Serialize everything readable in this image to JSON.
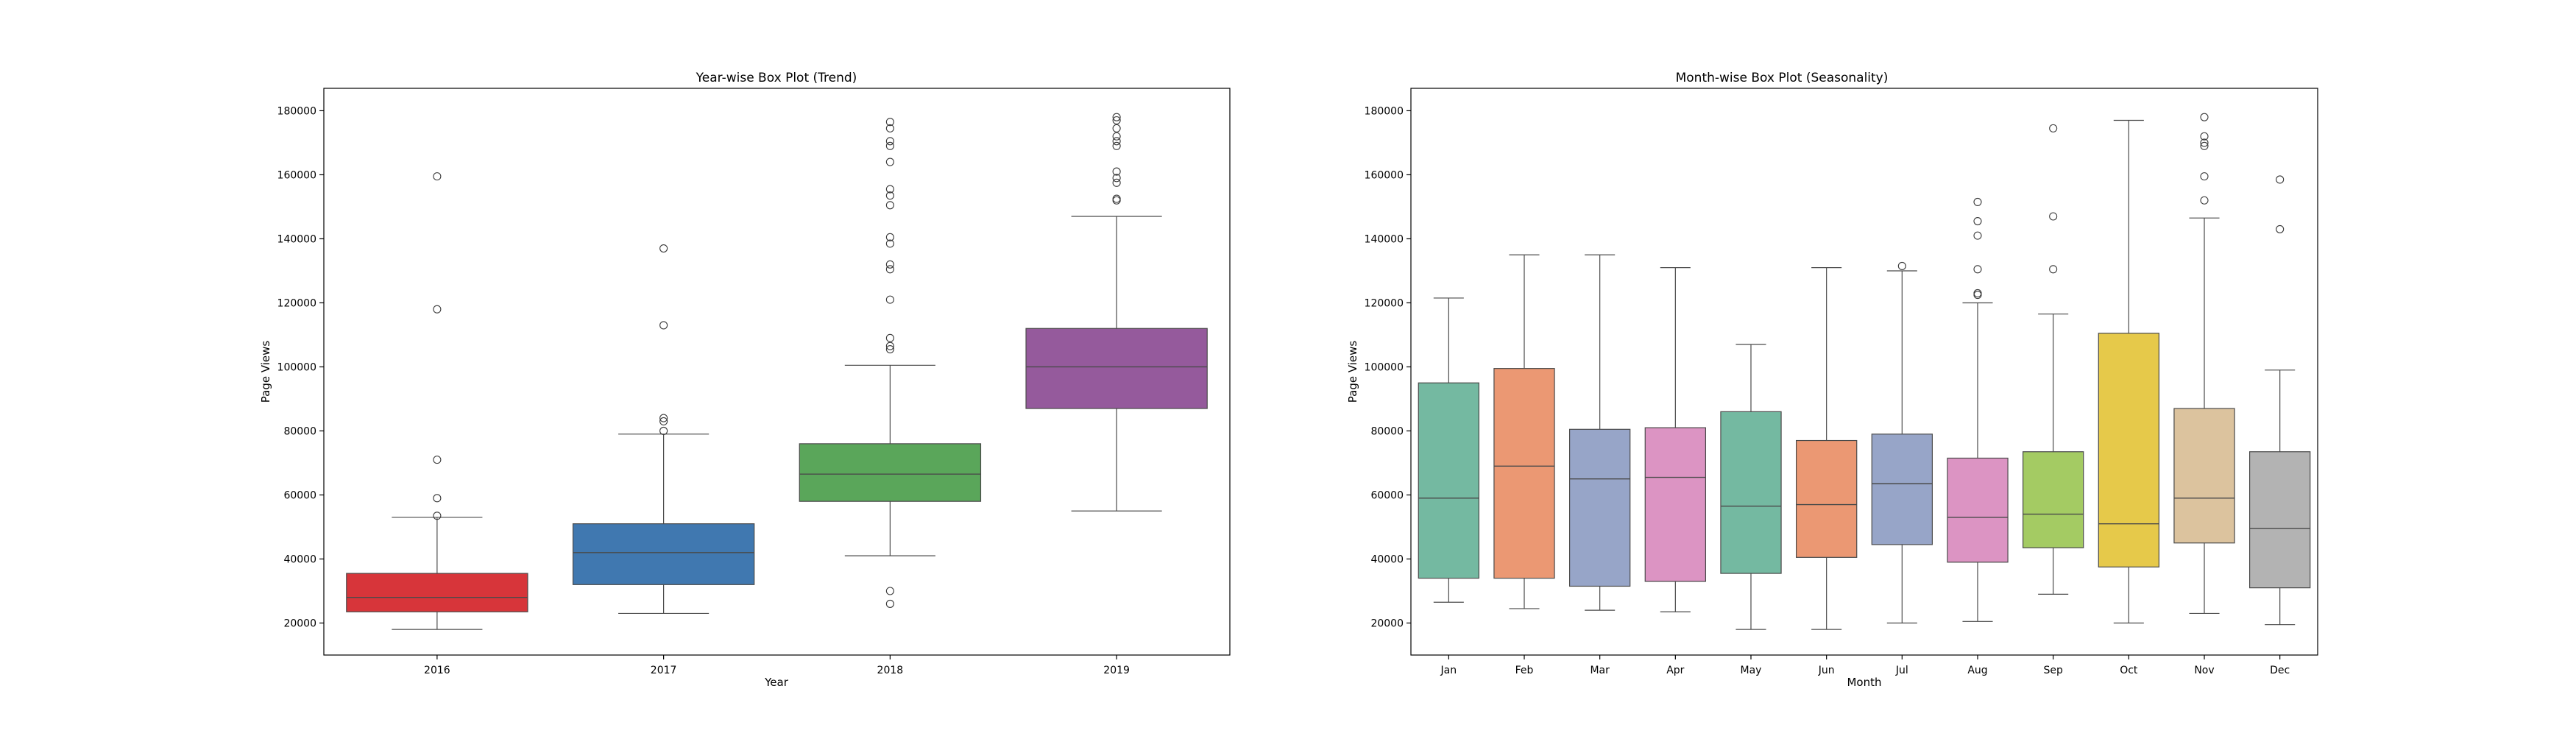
{
  "chart_data": [
    {
      "type": "box",
      "title": "Year-wise Box Plot (Trend)",
      "xlabel": "Year",
      "ylabel": "Page Views",
      "ylim": [
        10000,
        187000
      ],
      "yticks": [
        20000,
        40000,
        60000,
        80000,
        100000,
        120000,
        140000,
        160000,
        180000
      ],
      "grid": false,
      "categories": [
        "2016",
        "2017",
        "2018",
        "2019"
      ],
      "boxes": [
        {
          "category": "2016",
          "color": "#d7353a",
          "whisker_low": 18000,
          "q1": 23500,
          "median": 28000,
          "q3": 35500,
          "whisker_high": 53000,
          "outliers": [
            53500,
            59000,
            71000,
            118000,
            159500
          ]
        },
        {
          "category": "2017",
          "color": "#4078b0",
          "whisker_low": 23000,
          "q1": 32000,
          "median": 42000,
          "q3": 51000,
          "whisker_high": 79000,
          "outliers": [
            80000,
            83000,
            84000,
            113000,
            137000
          ]
        },
        {
          "category": "2018",
          "color": "#5aa65a",
          "whisker_low": 41000,
          "q1": 58000,
          "median": 66500,
          "q3": 76000,
          "whisker_high": 100500,
          "outliers": [
            26000,
            30000,
            105500,
            106500,
            109000,
            121000,
            130500,
            132000,
            138500,
            140500,
            150500,
            153500,
            155500,
            164000,
            169000,
            170500,
            174500,
            176500
          ]
        },
        {
          "category": "2019",
          "color": "#955a9c",
          "whisker_low": 55000,
          "q1": 87000,
          "median": 100000,
          "q3": 112000,
          "whisker_high": 147000,
          "outliers": [
            152000,
            152500,
            157500,
            159000,
            161000,
            169000,
            170500,
            172000,
            174500,
            177000,
            178000
          ]
        }
      ]
    },
    {
      "type": "box",
      "title": "Month-wise Box Plot (Seasonality)",
      "xlabel": "Month",
      "ylabel": "Page Views",
      "ylim": [
        10000,
        187000
      ],
      "yticks": [
        20000,
        40000,
        60000,
        80000,
        100000,
        120000,
        140000,
        160000,
        180000
      ],
      "grid": false,
      "categories": [
        "Jan",
        "Feb",
        "Mar",
        "Apr",
        "May",
        "Jun",
        "Jul",
        "Aug",
        "Sep",
        "Oct",
        "Nov",
        "Dec"
      ],
      "boxes": [
        {
          "category": "Jan",
          "color": "#74b9a1",
          "whisker_low": 26500,
          "q1": 34000,
          "median": 59000,
          "q3": 95000,
          "whisker_high": 121500,
          "outliers": []
        },
        {
          "category": "Feb",
          "color": "#eb9873",
          "whisker_low": 24500,
          "q1": 34000,
          "median": 69000,
          "q3": 99500,
          "whisker_high": 135000,
          "outliers": []
        },
        {
          "category": "Mar",
          "color": "#97a5c8",
          "whisker_low": 24000,
          "q1": 31500,
          "median": 65000,
          "q3": 80500,
          "whisker_high": 135000,
          "outliers": []
        },
        {
          "category": "Apr",
          "color": "#dc94c3",
          "whisker_low": 23500,
          "q1": 33000,
          "median": 65500,
          "q3": 81000,
          "whisker_high": 131000,
          "outliers": []
        },
        {
          "category": "May",
          "color": "#74b9a1",
          "whisker_low": 18000,
          "q1": 35500,
          "median": 56500,
          "q3": 86000,
          "whisker_high": 107000,
          "outliers": []
        },
        {
          "category": "Jun",
          "color": "#eb9873",
          "whisker_low": 18000,
          "q1": 40500,
          "median": 57000,
          "q3": 77000,
          "whisker_high": 131000,
          "outliers": []
        },
        {
          "category": "Jul",
          "color": "#97a5c8",
          "whisker_low": 20000,
          "q1": 44500,
          "median": 63500,
          "q3": 79000,
          "whisker_high": 130000,
          "outliers": [
            131500
          ]
        },
        {
          "category": "Aug",
          "color": "#dc94c3",
          "whisker_low": 20500,
          "q1": 39000,
          "median": 53000,
          "q3": 71500,
          "whisker_high": 120000,
          "outliers": [
            122500,
            123000,
            130500,
            141000,
            145500,
            151500
          ]
        },
        {
          "category": "Sep",
          "color": "#a4cb63",
          "whisker_low": 29000,
          "q1": 43500,
          "median": 54000,
          "q3": 73500,
          "whisker_high": 116500,
          "outliers": [
            130500,
            147000,
            174500
          ]
        },
        {
          "category": "Oct",
          "color": "#e6c94a",
          "whisker_low": 20000,
          "q1": 37500,
          "median": 51000,
          "q3": 110500,
          "whisker_high": 177000,
          "outliers": []
        },
        {
          "category": "Nov",
          "color": "#dcc39e",
          "whisker_low": 23000,
          "q1": 45000,
          "median": 59000,
          "q3": 87000,
          "whisker_high": 146500,
          "outliers": [
            152000,
            159500,
            169000,
            170000,
            172000,
            178000
          ]
        },
        {
          "category": "Dec",
          "color": "#b3b3b3",
          "whisker_low": 19500,
          "q1": 31000,
          "median": 49500,
          "q3": 73500,
          "whisker_high": 99000,
          "outliers": [
            143000,
            158500
          ]
        }
      ]
    }
  ]
}
